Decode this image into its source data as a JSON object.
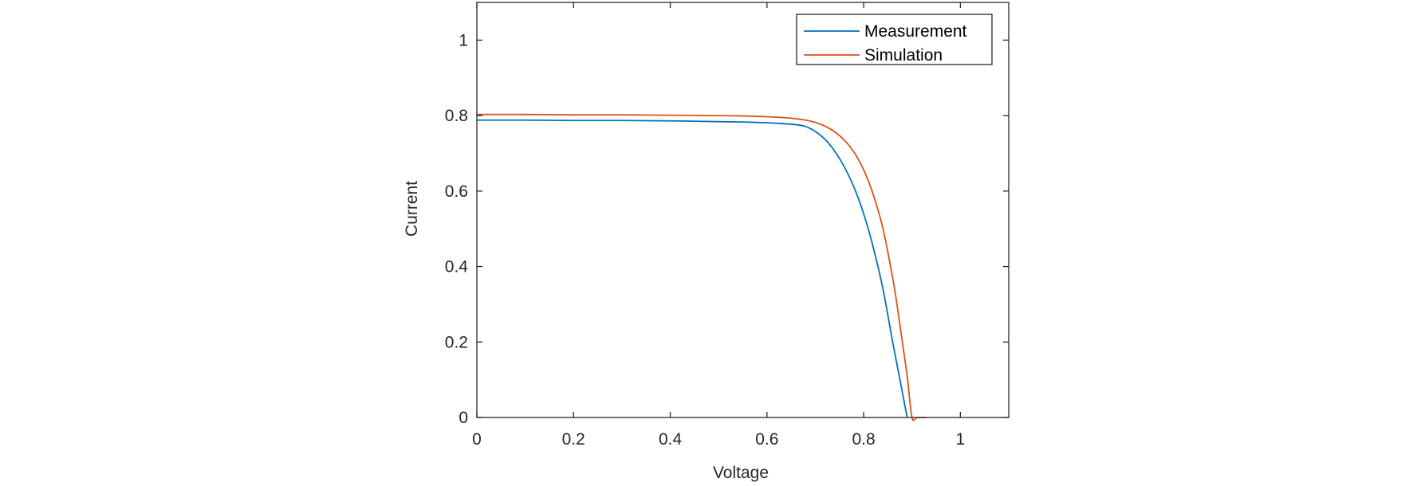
{
  "chart_data": {
    "type": "line",
    "title": "",
    "xlabel": "Voltage",
    "ylabel": "Current",
    "xlim": [
      0,
      1.1
    ],
    "ylim": [
      0,
      1.1
    ],
    "x_ticks": [
      0,
      0.2,
      0.4,
      0.6,
      0.8,
      1
    ],
    "x_tick_labels": [
      "0",
      "0.2",
      "0.4",
      "0.6",
      "0.8",
      "1"
    ],
    "y_ticks": [
      0,
      0.2,
      0.4,
      0.6,
      0.8,
      1
    ],
    "y_tick_labels": [
      "0",
      "0.2",
      "0.4",
      "0.6",
      "0.8",
      "1"
    ],
    "grid": false,
    "legend_position": "top-right",
    "series": [
      {
        "name": "Measurement",
        "color": "#0072BD",
        "x": [
          0,
          0.1,
          0.2,
          0.3,
          0.4,
          0.5,
          0.55,
          0.6,
          0.63,
          0.66,
          0.68,
          0.7,
          0.72,
          0.74,
          0.76,
          0.78,
          0.8,
          0.82,
          0.84,
          0.86,
          0.875,
          0.89
        ],
        "y": [
          0.788,
          0.788,
          0.787,
          0.787,
          0.786,
          0.784,
          0.783,
          0.781,
          0.779,
          0.776,
          0.771,
          0.758,
          0.737,
          0.706,
          0.664,
          0.61,
          0.54,
          0.45,
          0.34,
          0.2,
          0.1,
          0
        ]
      },
      {
        "name": "Simulation",
        "color": "#D95319",
        "x": [
          0,
          0.1,
          0.2,
          0.3,
          0.4,
          0.5,
          0.55,
          0.6,
          0.65,
          0.68,
          0.7,
          0.72,
          0.74,
          0.76,
          0.78,
          0.8,
          0.82,
          0.84,
          0.86,
          0.87,
          0.88,
          0.89,
          0.9,
          0.91,
          0.93
        ],
        "y": [
          0.803,
          0.803,
          0.802,
          0.802,
          0.801,
          0.8,
          0.799,
          0.797,
          0.793,
          0.788,
          0.782,
          0.772,
          0.757,
          0.735,
          0.703,
          0.656,
          0.59,
          0.5,
          0.37,
          0.29,
          0.2,
          0.11,
          0.0,
          0.0,
          0.0
        ]
      }
    ]
  }
}
